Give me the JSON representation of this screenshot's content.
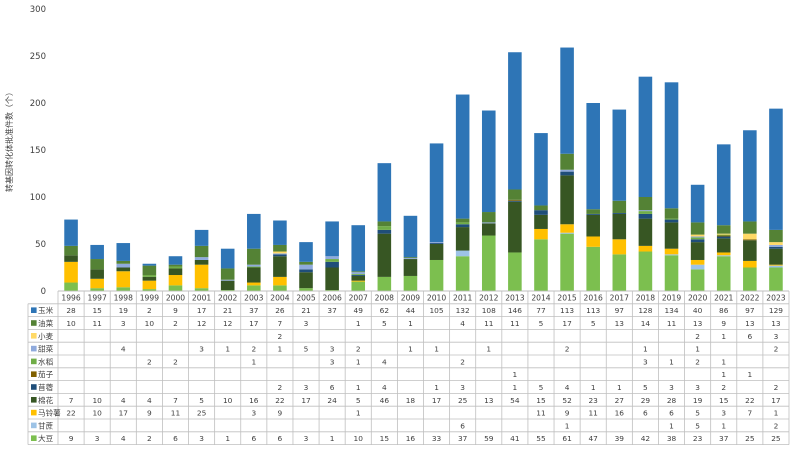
{
  "chart_data": {
    "type": "bar",
    "stacked": true,
    "title": "",
    "xlabel": "",
    "ylabel": "转基因转化体批准件数（个）",
    "ylim": [
      0,
      300
    ],
    "yticks": [
      0,
      50,
      100,
      150,
      200,
      250,
      300
    ],
    "grid": false,
    "legend": "table-left",
    "categories": [
      "1996",
      "1997",
      "1998",
      "1999",
      "2000",
      "2001",
      "2002",
      "2003",
      "2004",
      "2005",
      "2006",
      "2007",
      "2008",
      "2009",
      "2010",
      "2011",
      "2012",
      "2013",
      "2014",
      "2015",
      "2016",
      "2017",
      "2018",
      "2019",
      "2020",
      "2021",
      "2022",
      "2023"
    ],
    "series": [
      {
        "name": "大豆",
        "color": "#7cbf4f",
        "values": [
          9,
          3,
          4,
          2,
          6,
          3,
          1,
          6,
          6,
          3,
          1,
          10,
          15,
          16,
          33,
          37,
          59,
          41,
          55,
          61,
          47,
          39,
          42,
          38,
          23,
          37,
          25,
          25
        ]
      },
      {
        "name": "甘蔗",
        "color": "#9dc3e6",
        "values": [
          null,
          null,
          null,
          null,
          null,
          null,
          null,
          null,
          null,
          null,
          null,
          null,
          null,
          null,
          null,
          6,
          null,
          null,
          null,
          1,
          null,
          null,
          null,
          1,
          5,
          1,
          null,
          2
        ]
      },
      {
        "name": "马铃薯",
        "color": "#ffc000",
        "values": [
          22,
          10,
          17,
          9,
          11,
          25,
          null,
          3,
          9,
          null,
          null,
          1,
          null,
          null,
          null,
          null,
          null,
          null,
          11,
          9,
          11,
          16,
          6,
          6,
          5,
          3,
          7,
          1
        ]
      },
      {
        "name": "棉花",
        "color": "#375623",
        "values": [
          7,
          10,
          4,
          4,
          7,
          5,
          10,
          16,
          22,
          17,
          24,
          5,
          46,
          18,
          17,
          25,
          13,
          54,
          15,
          52,
          23,
          27,
          29,
          28,
          19,
          15,
          22,
          17
        ]
      },
      {
        "name": "苜蓿",
        "color": "#1f4e79",
        "values": [
          null,
          null,
          null,
          null,
          null,
          null,
          null,
          null,
          2,
          3,
          6,
          1,
          4,
          null,
          1,
          3,
          null,
          1,
          5,
          4,
          1,
          1,
          5,
          3,
          3,
          2,
          null,
          2
        ]
      },
      {
        "name": "茄子",
        "color": "#806000",
        "values": [
          null,
          null,
          null,
          null,
          null,
          null,
          null,
          null,
          null,
          null,
          null,
          null,
          null,
          null,
          null,
          null,
          null,
          1,
          null,
          null,
          null,
          null,
          null,
          null,
          null,
          1,
          1,
          null
        ]
      },
      {
        "name": "水稻",
        "color": "#70ad47",
        "values": [
          null,
          null,
          null,
          2,
          2,
          null,
          null,
          1,
          null,
          null,
          3,
          1,
          4,
          null,
          null,
          2,
          null,
          null,
          null,
          null,
          null,
          null,
          3,
          1,
          2,
          1,
          null,
          null
        ]
      },
      {
        "name": "甜菜",
        "color": "#8faadc",
        "values": [
          null,
          null,
          4,
          null,
          null,
          3,
          1,
          2,
          1,
          5,
          3,
          2,
          null,
          1,
          1,
          null,
          1,
          null,
          null,
          2,
          null,
          null,
          1,
          null,
          1,
          null,
          null,
          2
        ]
      },
      {
        "name": "小麦",
        "color": "#ffd966",
        "values": [
          null,
          null,
          null,
          null,
          null,
          null,
          null,
          null,
          2,
          null,
          null,
          null,
          null,
          null,
          null,
          null,
          null,
          null,
          null,
          null,
          null,
          null,
          null,
          null,
          2,
          1,
          6,
          3
        ]
      },
      {
        "name": "油菜",
        "color": "#548235",
        "values": [
          10,
          11,
          3,
          10,
          2,
          12,
          12,
          17,
          7,
          3,
          null,
          1,
          5,
          1,
          null,
          4,
          11,
          11,
          5,
          17,
          5,
          13,
          14,
          11,
          13,
          9,
          13,
          13
        ]
      },
      {
        "name": "玉米",
        "color": "#2e75b6",
        "values": [
          28,
          15,
          19,
          2,
          9,
          17,
          21,
          37,
          26,
          21,
          37,
          49,
          62,
          44,
          105,
          132,
          108,
          146,
          77,
          113,
          113,
          97,
          128,
          134,
          40,
          86,
          97,
          129
        ]
      }
    ]
  }
}
